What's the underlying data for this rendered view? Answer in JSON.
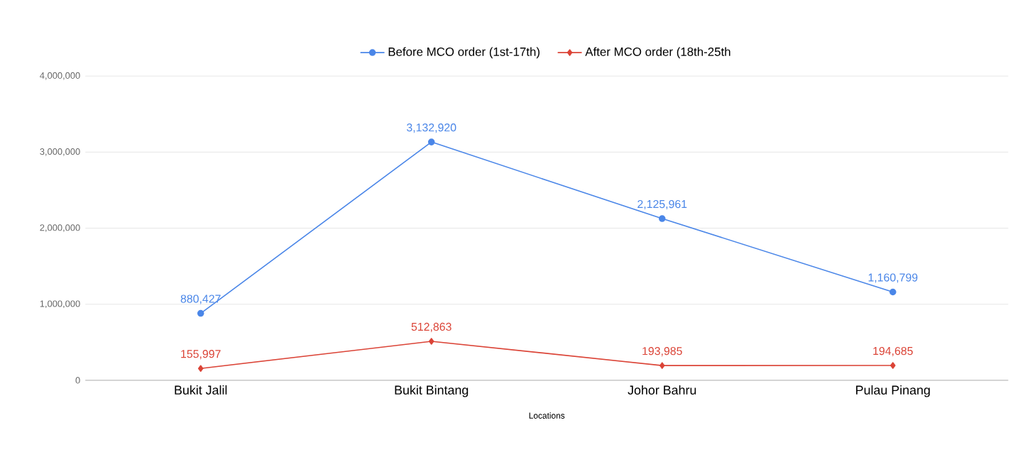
{
  "chart_data": {
    "type": "line",
    "xlabel": "Locations",
    "categories": [
      "Bukit Jalil",
      "Bukit Bintang",
      "Johor Bahru",
      "Pulau Pinang"
    ],
    "series": [
      {
        "name": "Before MCO order (1st-17th)",
        "color": "#4a86e8",
        "marker": "circle",
        "values": [
          880427,
          3132920,
          2125961,
          1160799
        ],
        "value_labels": [
          "880,427",
          "3,132,920",
          "2,125,961",
          "1,160,799"
        ]
      },
      {
        "name": "After MCO order (18th-25th",
        "color": "#db4437",
        "marker": "diamond",
        "values": [
          155997,
          512863,
          193985,
          194685
        ],
        "value_labels": [
          "155,997",
          "512,863",
          "193,985",
          "194,685"
        ]
      }
    ],
    "ylim": [
      0,
      4000000
    ],
    "yticks": [
      {
        "value": 0,
        "label": "0"
      },
      {
        "value": 1000000,
        "label": "1,000,000"
      },
      {
        "value": 2000000,
        "label": "2,000,000"
      },
      {
        "value": 3000000,
        "label": "3,000,000"
      },
      {
        "value": 4000000,
        "label": "4,000,000"
      }
    ],
    "grid": "y",
    "legend": "top"
  }
}
